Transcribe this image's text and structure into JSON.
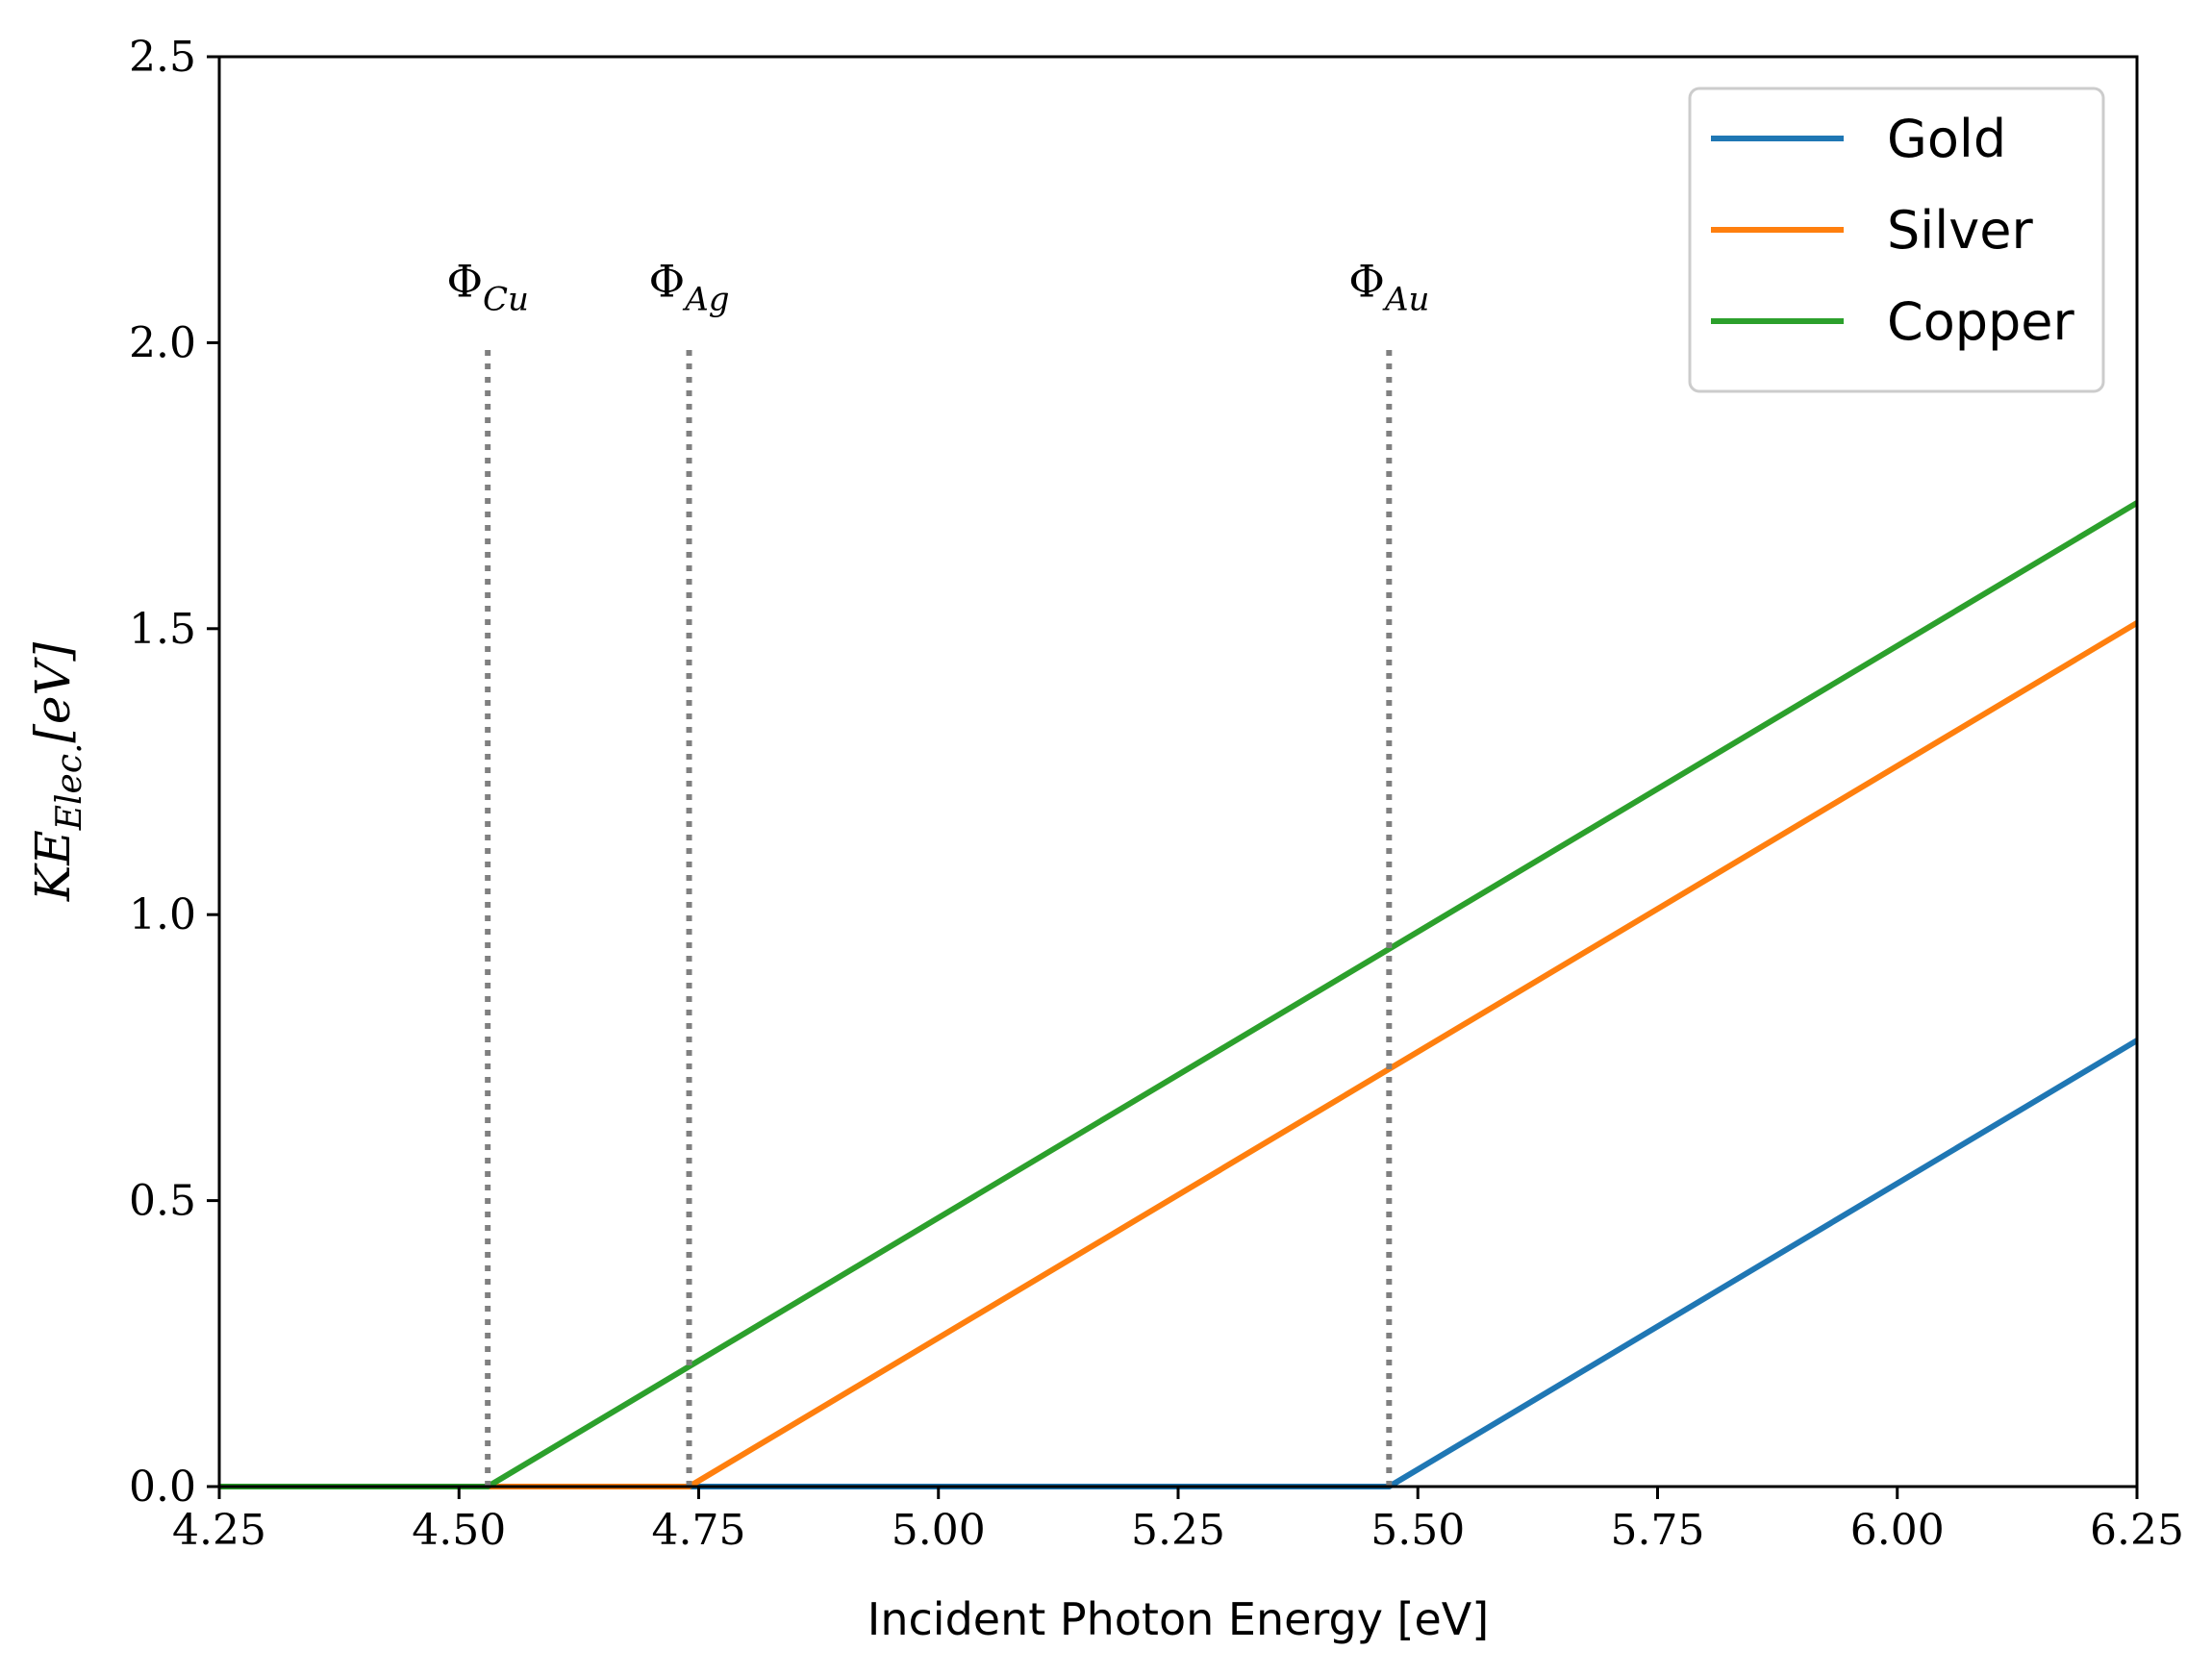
{
  "chart_data": {
    "type": "line",
    "xlabel": "Incident Photon Energy [eV]",
    "ylabel": "KE",
    "ylabel_sub": "Elec.",
    "ylabel_unit": "[eV]",
    "xlim": [
      4.25,
      6.25
    ],
    "ylim": [
      0.0,
      2.5
    ],
    "xticks": [
      "4.25",
      "4.50",
      "4.75",
      "5.00",
      "5.25",
      "5.50",
      "5.75",
      "6.00",
      "6.25"
    ],
    "yticks": [
      "0.0",
      "0.5",
      "1.0",
      "1.5",
      "2.0",
      "2.5"
    ],
    "grid": false,
    "legend_position": "top-right",
    "series": [
      {
        "name": "Gold",
        "color": "#1f77b4",
        "x": [
          4.25,
          5.47,
          6.25
        ],
        "y": [
          0.0,
          0.0,
          0.78
        ]
      },
      {
        "name": "Silver",
        "color": "#ff7f0e",
        "x": [
          4.25,
          4.74,
          6.25
        ],
        "y": [
          0.0,
          0.0,
          1.51
        ]
      },
      {
        "name": "Copper",
        "color": "#2ca02c",
        "x": [
          4.25,
          4.53,
          6.25
        ],
        "y": [
          0.0,
          0.0,
          1.72
        ]
      }
    ],
    "annotations": [
      {
        "base": "Φ",
        "sub": "Cu",
        "x": 4.53,
        "y_top": 2.0
      },
      {
        "base": "Φ",
        "sub": "Ag",
        "x": 4.74,
        "y_top": 2.0
      },
      {
        "base": "Φ",
        "sub": "Au",
        "x": 5.47,
        "y_top": 2.0
      }
    ],
    "annotation_line_color": "#808080"
  }
}
